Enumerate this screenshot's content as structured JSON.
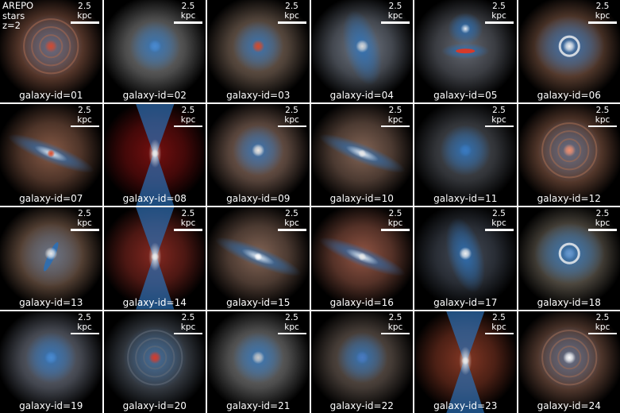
{
  "corner_text": {
    "line1": "AREPO",
    "line2": "stars",
    "line3": "z=2"
  },
  "scale_label": "2.5 kpc",
  "colors": {
    "blue": "#2b6fb5",
    "red": "#c44a2a",
    "white": "#f4f4f4",
    "background": "#000000"
  },
  "panels": [
    {
      "label": "galaxy-id=01",
      "style": "face",
      "halo": "#a26750",
      "core": "#d04a32"
    },
    {
      "label": "galaxy-id=02",
      "style": "round",
      "halo": "#8a8a8a",
      "core": "#4a8ad0"
    },
    {
      "label": "galaxy-id=03",
      "style": "round",
      "halo": "#8f7766",
      "core": "#d64a2a"
    },
    {
      "label": "galaxy-id=04",
      "style": "elong",
      "halo": "#7a8290",
      "core": "#d8d8d8"
    },
    {
      "label": "galaxy-id=05",
      "style": "double",
      "halo": "#6a6e78",
      "core": "#d63a2a"
    },
    {
      "label": "galaxy-id=06",
      "style": "ring",
      "halo": "#9a6a52",
      "core": "#f2f2f2"
    },
    {
      "label": "galaxy-id=07",
      "style": "edge",
      "halo": "#8e5f4a",
      "core": "#d84a2a"
    },
    {
      "label": "galaxy-id=08",
      "style": "hourglass",
      "halo": "#7a1010",
      "core": "#e8e8e8"
    },
    {
      "label": "galaxy-id=09",
      "style": "round",
      "halo": "#9a7868",
      "core": "#f0e8e0"
    },
    {
      "label": "galaxy-id=10",
      "style": "edge",
      "halo": "#8a6a5a",
      "core": "#e8e8e8"
    },
    {
      "label": "galaxy-id=11",
      "style": "round",
      "halo": "#5a5e66",
      "core": "#3a7ac0"
    },
    {
      "label": "galaxy-id=12",
      "style": "face",
      "halo": "#a06a52",
      "core": "#f09070"
    },
    {
      "label": "galaxy-id=13",
      "style": "bar",
      "halo": "#a07a62",
      "core": "#e8e8e8"
    },
    {
      "label": "galaxy-id=14",
      "style": "hourglass",
      "halo": "#8a2a22",
      "core": "#e8e8e8"
    },
    {
      "label": "galaxy-id=15",
      "style": "edge",
      "halo": "#8a6a5a",
      "core": "#ffffff"
    },
    {
      "label": "galaxy-id=16",
      "style": "edge",
      "halo": "#9a5a48",
      "core": "#e8e8e8"
    },
    {
      "label": "galaxy-id=17",
      "style": "elong",
      "halo": "#4a5260",
      "core": "#f0f0f0"
    },
    {
      "label": "galaxy-id=18",
      "style": "ring",
      "halo": "#8a8070",
      "core": "#6a9ad0"
    },
    {
      "label": "galaxy-id=19",
      "style": "round",
      "halo": "#7a8090",
      "core": "#4a8ad0"
    },
    {
      "label": "galaxy-id=20",
      "style": "face",
      "halo": "#606a78",
      "core": "#d63a2a"
    },
    {
      "label": "galaxy-id=21",
      "style": "round",
      "halo": "#8a8a8a",
      "core": "#c8c8c8"
    },
    {
      "label": "galaxy-id=22",
      "style": "round",
      "halo": "#7a6a60",
      "core": "#4a7ac0"
    },
    {
      "label": "galaxy-id=23",
      "style": "hourglass",
      "halo": "#8a3a26",
      "core": "#e8e8e8"
    },
    {
      "label": "galaxy-id=24",
      "style": "face",
      "halo": "#9a6a56",
      "core": "#ffffff"
    }
  ]
}
